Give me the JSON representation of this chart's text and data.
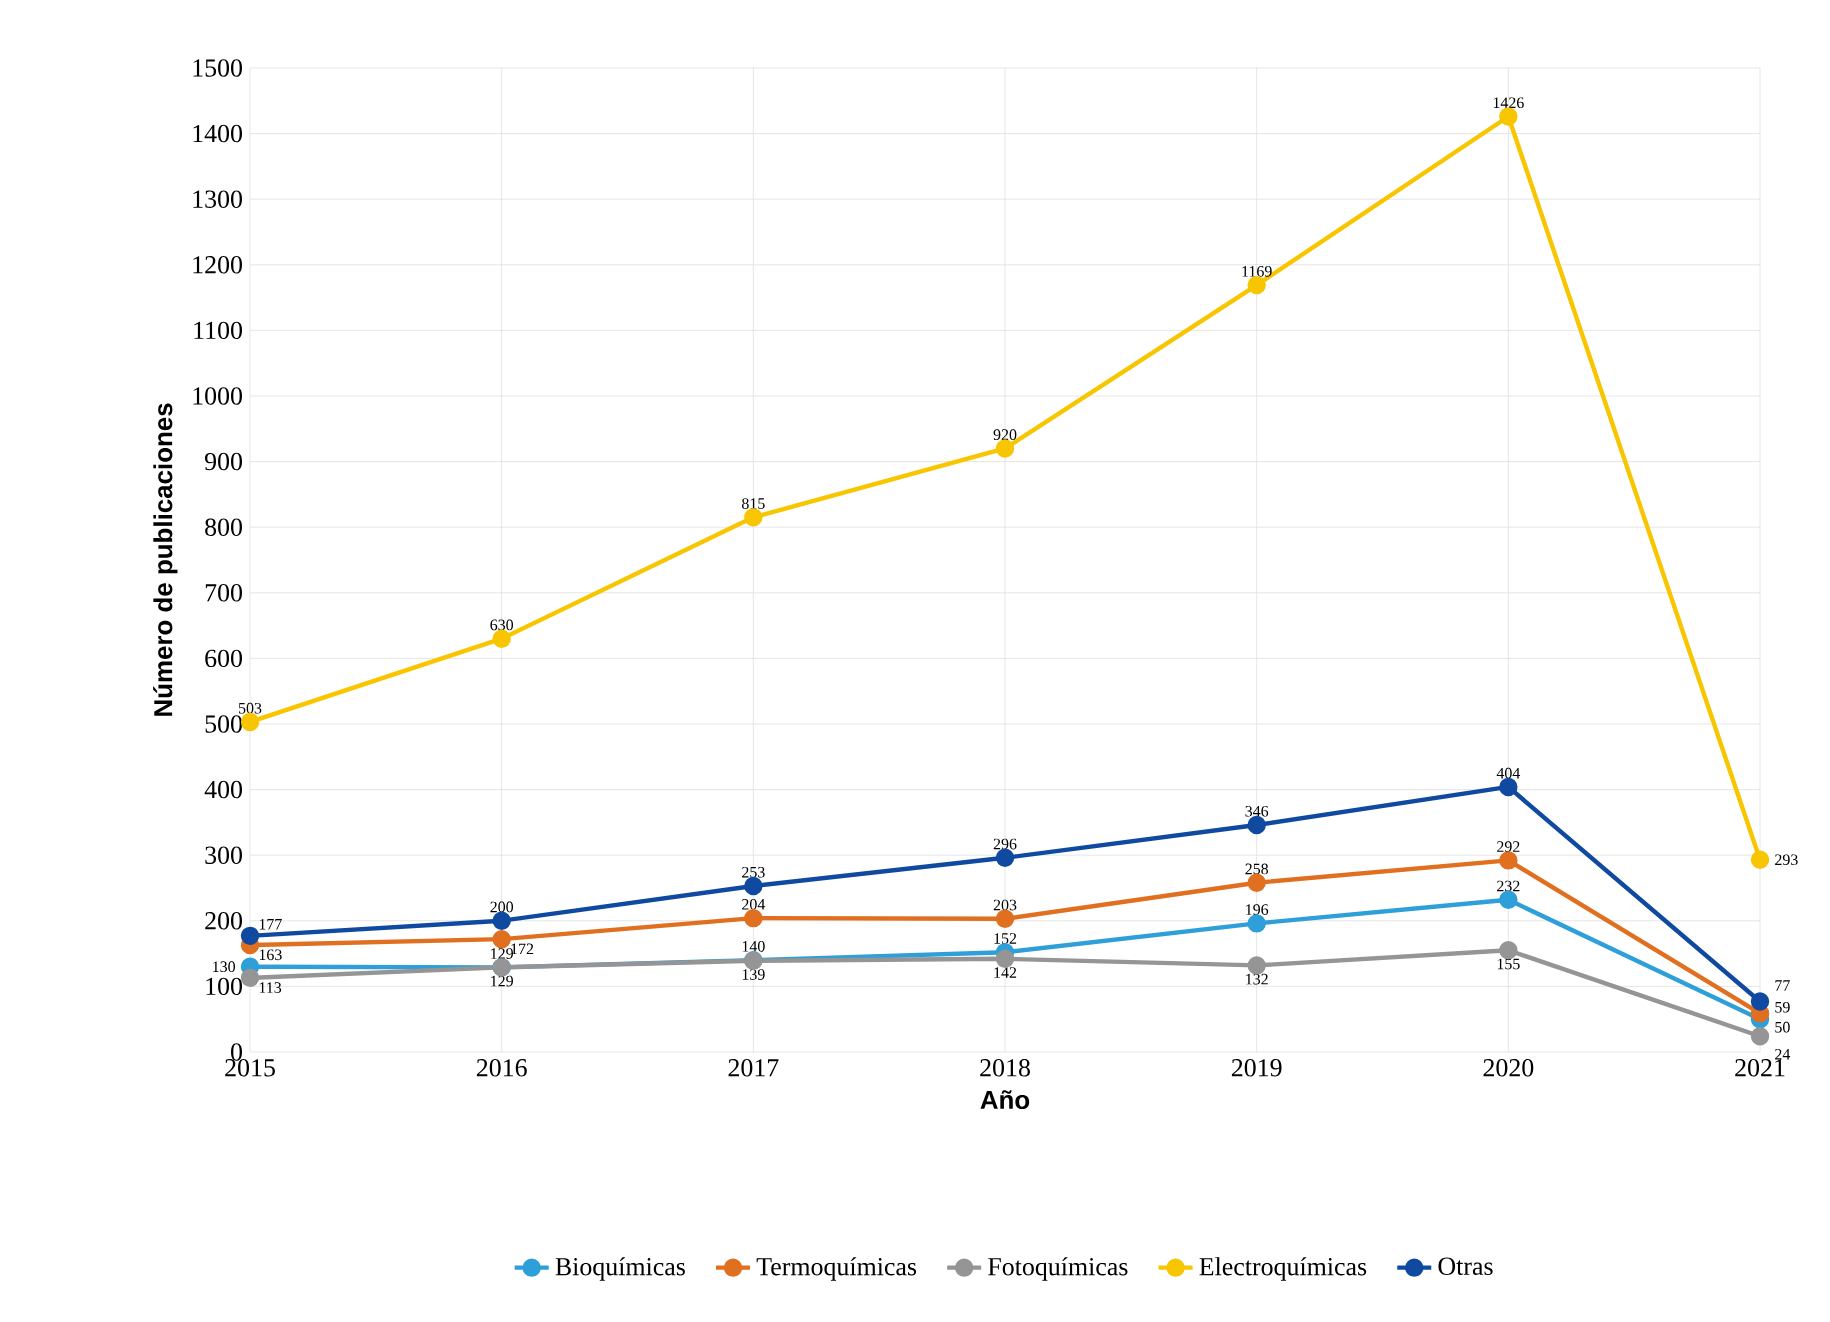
{
  "chart_data": {
    "type": "line",
    "xlabel": "Año",
    "ylabel": "Número de publicaciones",
    "x": [
      2015,
      2016,
      2017,
      2018,
      2019,
      2020,
      2021
    ],
    "series": [
      {
        "name": "Bioquímicas",
        "color": "#2e9fd8",
        "values": [
          130,
          129,
          140,
          152,
          196,
          232,
          50
        ]
      },
      {
        "name": "Termoquímicas",
        "color": "#e07020",
        "values": [
          163,
          172,
          204,
          203,
          258,
          292,
          59
        ]
      },
      {
        "name": "Fotoquímicas",
        "color": "#959595",
        "values": [
          113,
          129,
          139,
          142,
          132,
          155,
          24
        ]
      },
      {
        "name": "Electroquímicas",
        "color": "#f7c600",
        "values": [
          503,
          630,
          815,
          920,
          1169,
          1426,
          293
        ]
      },
      {
        "name": "Otras",
        "color": "#0f4aa0",
        "values": [
          177,
          200,
          253,
          296,
          346,
          404,
          77
        ]
      }
    ],
    "xlim": [
      2015,
      2021
    ],
    "xticks": [
      2015,
      2016,
      2017,
      2018,
      2019,
      2020,
      2021
    ],
    "ylim": [
      0,
      1500
    ],
    "yticks": [
      0,
      100,
      200,
      300,
      400,
      500,
      600,
      700,
      800,
      900,
      1000,
      1100,
      1200,
      1300,
      1400,
      1500
    ],
    "grid": true,
    "legend": "bottom",
    "marker": "circle",
    "line_style": "solid",
    "data_labels": true
  }
}
